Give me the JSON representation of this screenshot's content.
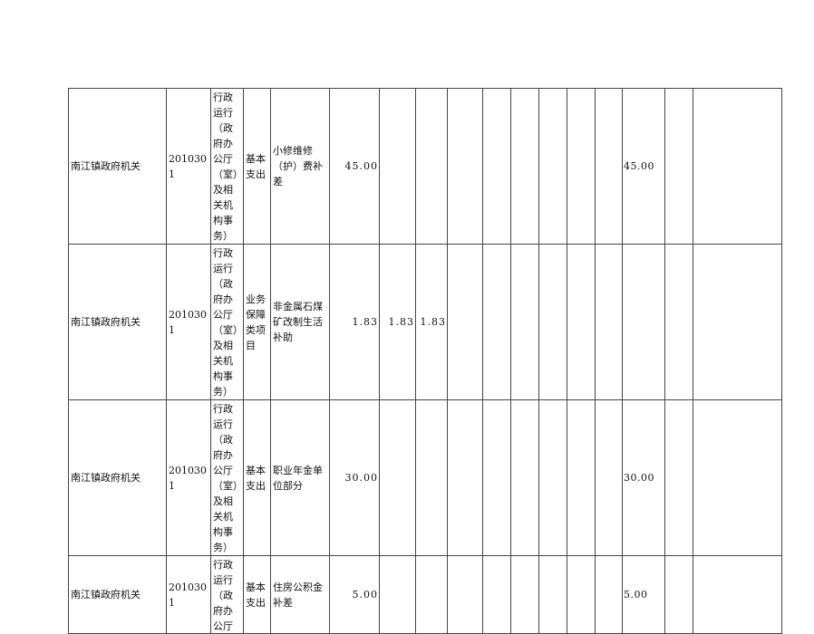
{
  "rows": [
    {
      "unit": "南江镇政府机关",
      "code": "2010301",
      "func": "行政运行（政府办公厅（室）及相关机构事务）",
      "type": "基本支出",
      "item": "小修维修（护）费补差",
      "total": "45.00",
      "c2": "",
      "c3": "",
      "c16": "45.00"
    },
    {
      "unit": "南江镇政府机关",
      "code": "2010301",
      "func": "行政运行（政府办公厅（室）及相关机构事务）",
      "type": "业务保障类项目",
      "item": "非金属石煤矿改制生活补助",
      "total": "1.83",
      "c2": "1.83",
      "c3": "1.83",
      "c16": ""
    },
    {
      "unit": "南江镇政府机关",
      "code": "2010301",
      "func": "行政运行（政府办公厅（室）及相关机构事务）",
      "type": "基本支出",
      "item": "职业年金单位部分",
      "total": "30.00",
      "c2": "",
      "c3": "",
      "c16": "30.00"
    },
    {
      "unit": "南江镇政府机关",
      "code": "2010301",
      "func": "行政运行（政府办公厅（室）及相关机构事务）",
      "type": "基本支出",
      "item": "住房公积金补差",
      "total": "5.00",
      "c2": "",
      "c3": "",
      "c16": "5.00"
    }
  ]
}
